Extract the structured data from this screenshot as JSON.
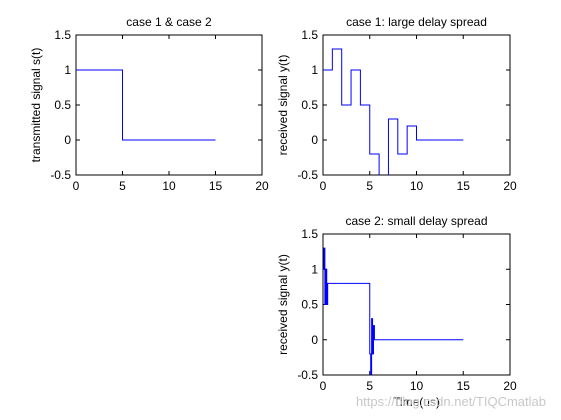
{
  "chart_data": [
    {
      "type": "line",
      "title": "case 1 & case 2",
      "xlabel": "",
      "ylabel": "transmitted signal s(t)",
      "xlim": [
        0,
        20
      ],
      "ylim": [
        -0.5,
        1.5
      ],
      "xticks": [
        "0",
        "5",
        "10",
        "15",
        "20"
      ],
      "yticks": [
        "-0.5",
        "0",
        "0.5",
        "1",
        "1.5"
      ],
      "series": [
        {
          "x": [
            0,
            5,
            5,
            15
          ],
          "y": [
            1,
            1,
            0,
            0
          ]
        }
      ]
    },
    {
      "type": "line",
      "title": "case 1: large delay spread",
      "xlabel": "",
      "ylabel": "received signal y(t)",
      "xlim": [
        0,
        20
      ],
      "ylim": [
        -0.5,
        1.5
      ],
      "xticks": [
        "0",
        "5",
        "10",
        "15",
        "20"
      ],
      "yticks": [
        "-0.5",
        "0",
        "0.5",
        "1",
        "1.5"
      ],
      "series": [
        {
          "x": [
            0,
            1,
            1,
            2,
            2,
            3,
            3,
            4,
            4,
            5,
            5,
            6,
            6,
            7,
            7,
            8,
            8,
            9,
            9,
            10,
            10,
            15
          ],
          "y": [
            1,
            1,
            1.3,
            1.3,
            0.5,
            0.5,
            1,
            1,
            0.5,
            0.5,
            -0.2,
            -0.2,
            -0.7,
            -0.7,
            0.3,
            0.3,
            -0.2,
            -0.2,
            0.2,
            0.2,
            0,
            0
          ]
        }
      ]
    },
    {
      "type": "line",
      "title": "case 2: small delay spread",
      "xlabel": "Time(us)",
      "ylabel": "received signal y(t)",
      "xlim": [
        0,
        20
      ],
      "ylim": [
        -0.5,
        1.5
      ],
      "xticks": [
        "0",
        "5",
        "10",
        "15",
        "20"
      ],
      "yticks": [
        "-0.5",
        "0",
        "0.5",
        "1",
        "1.5"
      ],
      "series": [
        {
          "x": [
            0,
            0.1,
            0.1,
            0.2,
            0.2,
            0.3,
            0.3,
            0.4,
            0.4,
            0.5,
            0.5,
            5,
            5,
            5.1,
            5.1,
            5.2,
            5.2,
            5.3,
            5.3,
            5.4,
            5.4,
            5.5,
            5.5,
            15
          ],
          "y": [
            1,
            1,
            1.3,
            1.3,
            0.5,
            0.5,
            1,
            1,
            0.5,
            0.5,
            0.8,
            0.8,
            -0.2,
            -0.2,
            -0.7,
            -0.7,
            0.3,
            0.3,
            -0.2,
            -0.2,
            0.2,
            0.2,
            0,
            0
          ]
        }
      ]
    }
  ],
  "colors": {
    "line": "#0000ff",
    "axis": "#000000",
    "background": "#ffffff"
  },
  "watermark": "https://blog.csdn.net/TIQCmatlab"
}
